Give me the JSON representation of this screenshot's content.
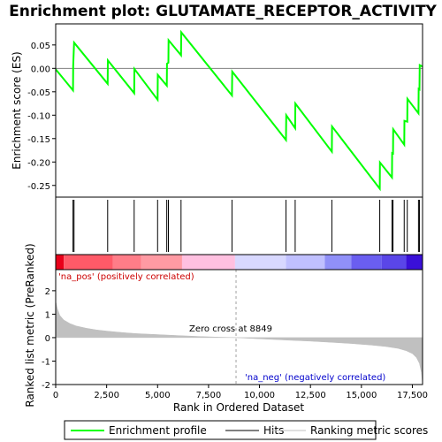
{
  "chart_data": {
    "type": "line",
    "title": "Enrichment plot: GLUTAMATE_RECEPTOR_ACTIVITY",
    "top_panel": {
      "ylabel": "Enrichment score (ES)",
      "ylim": [
        -0.275,
        0.095
      ],
      "yticks": [
        -0.25,
        -0.2,
        -0.15,
        -0.1,
        -0.05,
        0.0,
        0.05
      ],
      "ytick_labels": [
        "-0.25",
        "-0.20",
        "-0.15",
        "-0.10",
        "-0.05",
        "0.00",
        "0.05"
      ],
      "series": [
        {
          "name": "Enrichment profile",
          "color": "#00ff00",
          "x": [
            0,
            850,
            860,
            900,
            2550,
            2560,
            3850,
            3860,
            5000,
            5010,
            5450,
            5460,
            5530,
            5540,
            6150,
            6160,
            8650,
            8660,
            11300,
            11310,
            11750,
            11760,
            13550,
            13560,
            15900,
            15910,
            16500,
            16510,
            16550,
            16560,
            17100,
            17110,
            17250,
            17260,
            17800,
            17810,
            17850,
            17860,
            17990
          ],
          "y": [
            -0.002,
            -0.047,
            0.005,
            0.055,
            -0.033,
            0.017,
            -0.053,
            -0.001,
            -0.067,
            -0.014,
            -0.037,
            0.01,
            0.012,
            0.06,
            0.028,
            0.077,
            -0.058,
            -0.007,
            -0.153,
            -0.1,
            -0.128,
            -0.075,
            -0.178,
            -0.124,
            -0.257,
            -0.201,
            -0.233,
            -0.181,
            -0.182,
            -0.13,
            -0.163,
            -0.112,
            -0.114,
            -0.065,
            -0.096,
            -0.044,
            -0.045,
            0.007,
            0.004
          ]
        }
      ]
    },
    "hits": {
      "name": "Hits",
      "color": "#000000",
      "x": [
        850,
        900,
        2550,
        3850,
        5000,
        5450,
        5530,
        6150,
        8650,
        11300,
        11750,
        13550,
        15900,
        16500,
        16550,
        17100,
        17250,
        17800,
        17850
      ]
    },
    "bottom_panel": {
      "ylabel": "Ranked list metric (PreRanked)",
      "xlabel": "Rank in Ordered Dataset",
      "ylim": [
        -2.0,
        2.9
      ],
      "yticks": [
        -2,
        -1,
        0,
        1,
        2
      ],
      "ytick_labels": [
        "-2",
        "-1",
        "0",
        "1",
        "2"
      ],
      "metric_curve": {
        "name": "Ranking metric scores",
        "color": "#c0c0c0",
        "x": [
          0,
          80,
          200,
          400,
          700,
          1000,
          1500,
          2000,
          2500,
          3000,
          3500,
          4000,
          5000,
          6000,
          7000,
          8000,
          8849,
          9500,
          10500,
          11500,
          12500,
          13500,
          14500,
          15500,
          16200,
          16800,
          17200,
          17500,
          17700,
          17850,
          17950,
          17990
        ],
        "y": [
          1.55,
          1.25,
          0.95,
          0.75,
          0.6,
          0.5,
          0.4,
          0.33,
          0.28,
          0.24,
          0.2,
          0.17,
          0.13,
          0.09,
          0.05,
          0.02,
          0.0,
          -0.03,
          -0.07,
          -0.11,
          -0.15,
          -0.2,
          -0.25,
          -0.32,
          -0.38,
          -0.46,
          -0.56,
          -0.68,
          -0.85,
          -1.1,
          -1.5,
          -1.9
        ]
      },
      "zero_cross_label": "Zero cross at 8849",
      "zero_cross_x": 8849,
      "pos_label": "'na_pos' (positively correlated)",
      "neg_label": "'na_neg' (negatively correlated)"
    },
    "xlim": [
      0,
      18000
    ],
    "xticks": [
      0,
      2500,
      5000,
      7500,
      10000,
      12500,
      15000,
      17500
    ],
    "xtick_labels": [
      "0",
      "2,500",
      "5,000",
      "7,500",
      "10,000",
      "12,500",
      "15,000",
      "17,500"
    ],
    "colorbar": {
      "segments": [
        {
          "x0": 0,
          "x1": 400,
          "color": "#e8001a"
        },
        {
          "x0": 400,
          "x1": 2800,
          "color": "#ff5a68"
        },
        {
          "x0": 2800,
          "x1": 4200,
          "color": "#ff7d88"
        },
        {
          "x0": 4200,
          "x1": 6200,
          "color": "#ff9aa3"
        },
        {
          "x0": 6200,
          "x1": 8800,
          "color": "#ffc0e0"
        },
        {
          "x0": 8800,
          "x1": 11300,
          "color": "#d8d8ff"
        },
        {
          "x0": 11300,
          "x1": 13200,
          "color": "#c0c0ff"
        },
        {
          "x0": 13200,
          "x1": 14500,
          "color": "#9090f8"
        },
        {
          "x0": 14500,
          "x1": 16000,
          "color": "#6a5ef0"
        },
        {
          "x0": 16000,
          "x1": 17200,
          "color": "#5a46e8"
        },
        {
          "x0": 17200,
          "x1": 17990,
          "color": "#3a10d8"
        }
      ]
    },
    "legend": {
      "placement": "bottom",
      "items": [
        {
          "label": "Enrichment profile",
          "color": "#00ff00"
        },
        {
          "label": "Hits",
          "color": "#000000"
        },
        {
          "label": "Ranking metric scores",
          "color": "#c0c0c0"
        }
      ]
    },
    "colors": {
      "pos_text": "#cc0000",
      "neg_text": "#0000cc",
      "frame": "#000000"
    }
  }
}
